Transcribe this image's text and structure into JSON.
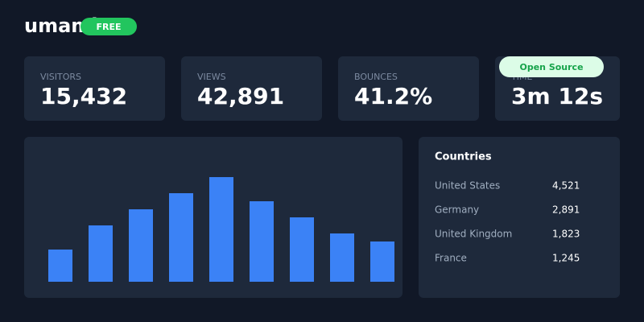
{
  "header": {
    "logo": "umami",
    "badge": "FREE"
  },
  "promo_badge": "Open Source",
  "stats": [
    {
      "label": "VISITORS",
      "value": "15,432"
    },
    {
      "label": "VIEWS",
      "value": "42,891"
    },
    {
      "label": "BOUNCES",
      "value": "41.2%"
    },
    {
      "label": "TIME",
      "value": "3m 12s"
    }
  ],
  "chart_data": {
    "type": "bar",
    "color": "#3b82f6",
    "values": [
      40,
      70,
      90,
      110,
      130,
      100,
      80,
      60,
      50
    ]
  },
  "countries": {
    "title": "Countries",
    "rows": [
      [
        "United States",
        "4,521"
      ],
      [
        "Germany",
        "2,891"
      ],
      [
        "United Kingdom",
        "1,823"
      ],
      [
        "France",
        "1,245"
      ]
    ]
  }
}
